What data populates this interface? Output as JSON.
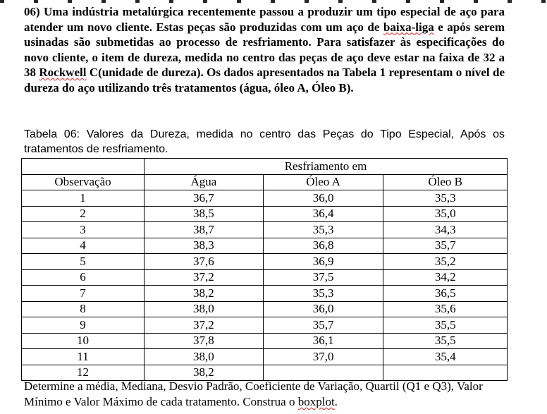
{
  "question": {
    "segments": [
      {
        "text": "06) Uma indústria metalúrgica recentemente passou a produzir um tipo especial de aço para atender um novo cliente. Estas peças são produzidas com um aço de ",
        "squiggle": false
      },
      {
        "text": "baixa-liga",
        "squiggle": true
      },
      {
        "text": " e após serem usinadas são submetidas ao processo de resfriamento. Para satisfazer às especificações do novo cliente, o item de dureza, medida no centro das peças de aço deve estar na faixa de 32 a 38 ",
        "squiggle": false
      },
      {
        "text": "Rockwell",
        "squiggle": true
      },
      {
        "text": " C(unidade de dureza). Os dados apresentados na Tabela 1 representam o nível de dureza do aço utilizando três tratamentos (água, óleo A, Óleo B).",
        "squiggle": false
      }
    ]
  },
  "caption": "Tabela 06: Valores da Dureza, medida no centro das Peças do Tipo Especial, Após os tratamentos de resfriamento.",
  "table": {
    "group_header": "Resfriamento em",
    "columns": [
      "Observação",
      "Água",
      "Óleo A",
      "Óleo B"
    ],
    "rows": [
      [
        "1",
        "36,7",
        "36,0",
        "35,3"
      ],
      [
        "2",
        "38,5",
        "36,4",
        "35,0"
      ],
      [
        "3",
        "38,7",
        "35,3",
        "34,3"
      ],
      [
        "4",
        "38,3",
        "36,8",
        "35,7"
      ],
      [
        "5",
        "37,6",
        "36,9",
        "35,2"
      ],
      [
        "6",
        "37,2",
        "37,5",
        "34,2"
      ],
      [
        "7",
        "38,2",
        "35,3",
        "36,5"
      ],
      [
        "8",
        "38,0",
        "36,0",
        "35,6"
      ],
      [
        "9",
        "37,2",
        "35,7",
        "35,5"
      ],
      [
        "10",
        "37,8",
        "36,1",
        "35,5"
      ],
      [
        "11",
        "38,0",
        "37,0",
        "35,4"
      ],
      [
        "12",
        "38,2",
        "",
        ""
      ]
    ]
  },
  "footer": {
    "text_before": "Determine a média, Mediana, Desvio Padrão, Coeficiente de Variação, Quartil (Q1 e Q3), Valor Mínimo e Valor Máximo de cada tratamento. Construa o ",
    "squiggle_word": "boxplot",
    "text_after": "."
  }
}
